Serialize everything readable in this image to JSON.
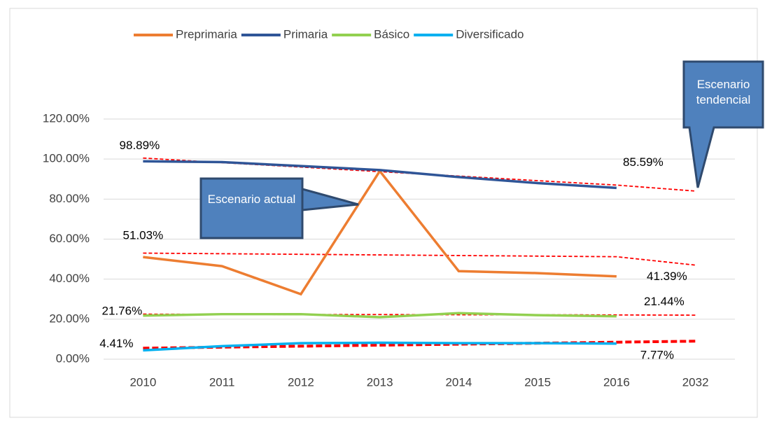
{
  "chart_data": {
    "type": "line",
    "categories": [
      "2010",
      "2011",
      "2012",
      "2013",
      "2014",
      "2015",
      "2016",
      "2032"
    ],
    "series": [
      {
        "name": "Preprimaria",
        "color": "#ed7d31",
        "values": [
          51.03,
          46.5,
          32.5,
          94,
          44,
          43,
          41.39,
          null
        ],
        "value_labels": [
          "51.03%",
          null,
          null,
          null,
          null,
          null,
          "41.39%",
          null
        ]
      },
      {
        "name": "Primaria",
        "color": "#2f5597",
        "values": [
          98.89,
          98.5,
          96.5,
          94.5,
          91,
          88,
          85.59,
          null
        ],
        "value_labels": [
          "98.89%",
          null,
          null,
          null,
          null,
          null,
          "85.59%",
          null
        ]
      },
      {
        "name": "Básico",
        "color": "#92d050",
        "values": [
          21.76,
          22.5,
          22.5,
          21,
          23,
          22,
          21.44,
          null
        ],
        "value_labels": [
          "21.76%",
          null,
          null,
          null,
          null,
          null,
          "21.44%",
          null
        ]
      },
      {
        "name": "Diversificado",
        "color": "#00b0f0",
        "values": [
          4.41,
          6.5,
          8,
          8.2,
          8,
          8,
          7.77,
          null
        ],
        "value_labels": [
          "4.41%",
          null,
          null,
          null,
          null,
          null,
          "7.77%",
          null
        ]
      }
    ],
    "trendlines": [
      {
        "color": "#ff0000",
        "values": [
          53,
          52.7,
          52.4,
          52.1,
          51.8,
          51.5,
          51.2,
          47
        ]
      },
      {
        "color": "#ff0000",
        "values": [
          100.5,
          98.2,
          96,
          93.7,
          91.5,
          89.2,
          87,
          84
        ]
      },
      {
        "color": "#ff0000",
        "values": [
          22.5,
          22.4,
          22.3,
          22.3,
          22.2,
          22.2,
          22.1,
          22
        ]
      },
      {
        "color": "#ff0000",
        "values": [
          5.5,
          6,
          6.5,
          7,
          7.5,
          8,
          8.5,
          9
        ]
      }
    ],
    "ylim": [
      0,
      120
    ],
    "yticks": [
      {
        "value": 0,
        "label": "0.00%"
      },
      {
        "value": 20,
        "label": "20.00%"
      },
      {
        "value": 40,
        "label": "40.00%"
      },
      {
        "value": 60,
        "label": "60.00%"
      },
      {
        "value": 80,
        "label": "80.00%"
      },
      {
        "value": 100,
        "label": "100.00%"
      },
      {
        "value": 120,
        "label": "120.00%"
      }
    ],
    "grid": true,
    "legend": "top",
    "annotations": [
      "Escenario actual",
      "Escenario tendencial"
    ]
  }
}
